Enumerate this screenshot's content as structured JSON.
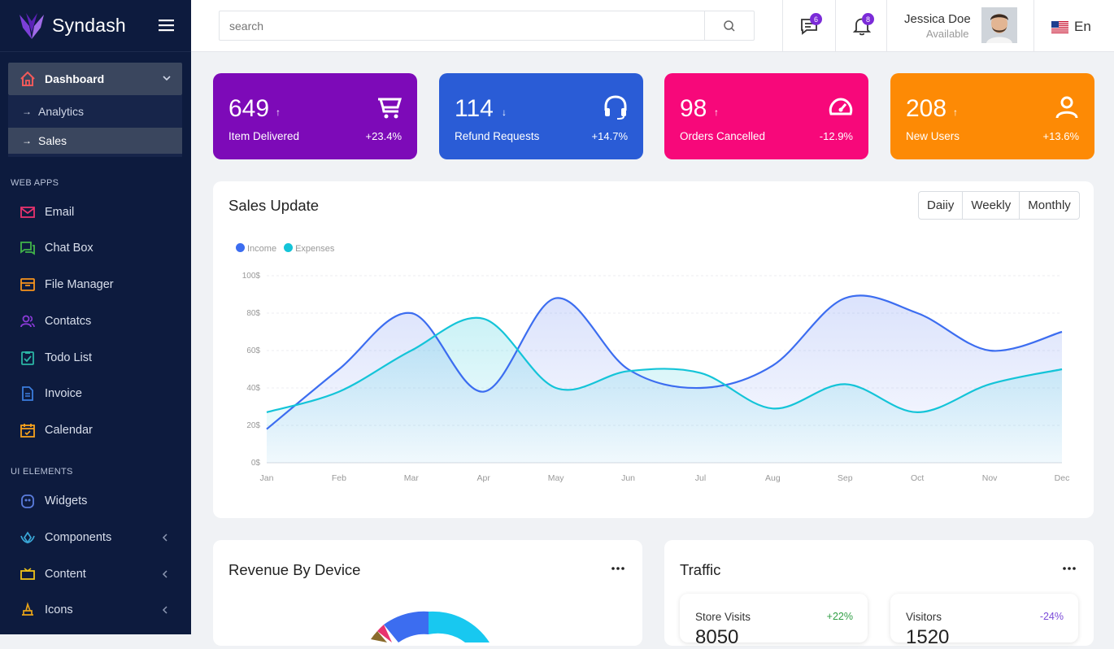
{
  "brand": {
    "name": "Syndash"
  },
  "sidebar": {
    "dashboard": "Dashboard",
    "sub_items": [
      "Analytics",
      "Sales"
    ],
    "sections": [
      "WEB APPS",
      "UI ELEMENTS"
    ],
    "web_apps": [
      "Email",
      "Chat Box",
      "File Manager",
      "Contatcs",
      "Todo List",
      "Invoice",
      "Calendar"
    ],
    "ui_elements": [
      "Widgets",
      "Components",
      "Content",
      "Icons"
    ],
    "colors": {
      "email": "#e8336e",
      "chat": "#41b349",
      "file": "#f7941d",
      "contacts": "#8b3bd8",
      "todo": "#2bb5a5",
      "invoice": "#3b7ddd",
      "calendar": "#f7a21d",
      "widgets": "#5b7ddd",
      "components": "#3aa8d8",
      "content": "#f0c419",
      "icons": "#e8a317"
    }
  },
  "topbar": {
    "search_placeholder": "search",
    "chat_badge": "6",
    "bell_badge": "8",
    "user_name": "Jessica Doe",
    "user_status": "Available",
    "language": "En"
  },
  "stats": [
    {
      "value": "649",
      "title": "Item Delivered",
      "pct": "+23.4%",
      "color": "#7d0ab8",
      "icon": "cart-icon"
    },
    {
      "value": "114",
      "title": "Refund Requests",
      "pct": "+14.7%",
      "color": "#2a5cd6",
      "icon": "headphones-icon"
    },
    {
      "value": "98",
      "title": "Orders Cancelled",
      "pct": "-12.9%",
      "color": "#f7087a",
      "icon": "speedometer-icon"
    },
    {
      "value": "208",
      "title": "New Users",
      "pct": "+13.6%",
      "color": "#fd8a05",
      "icon": "user-icon"
    }
  ],
  "sales": {
    "title": "Sales Update",
    "tabs": [
      "Daiiy",
      "Weekly",
      "Monthly"
    ]
  },
  "chart_data": {
    "type": "area",
    "categories": [
      "Jan",
      "Feb",
      "Mar",
      "Apr",
      "May",
      "Jun",
      "Jul",
      "Aug",
      "Sep",
      "Oct",
      "Nov",
      "Dec"
    ],
    "series": [
      {
        "name": "Income",
        "color": "#3c6df0",
        "values": [
          18,
          50,
          80,
          38,
          88,
          50,
          40,
          52,
          88,
          80,
          60,
          70
        ]
      },
      {
        "name": "Expenses",
        "color": "#14c4d8",
        "values": [
          27,
          38,
          60,
          77,
          40,
          49,
          48,
          29,
          42,
          27,
          42,
          50
        ]
      }
    ],
    "y_ticks": [
      "0$",
      "20$",
      "40$",
      "60$",
      "80$",
      "100$"
    ],
    "ylim": [
      0,
      100
    ],
    "legend": "top-left",
    "grid": true
  },
  "revenue": {
    "title": "Revenue By Device"
  },
  "traffic": {
    "title": "Traffic",
    "cards": [
      {
        "label": "Store Visits",
        "pct": "+22%",
        "value": "8050",
        "pct_color": "#2f9e44"
      },
      {
        "label": "Visitors",
        "pct": "-24%",
        "value": "1520",
        "pct_color": "#7b4bd8"
      }
    ]
  }
}
